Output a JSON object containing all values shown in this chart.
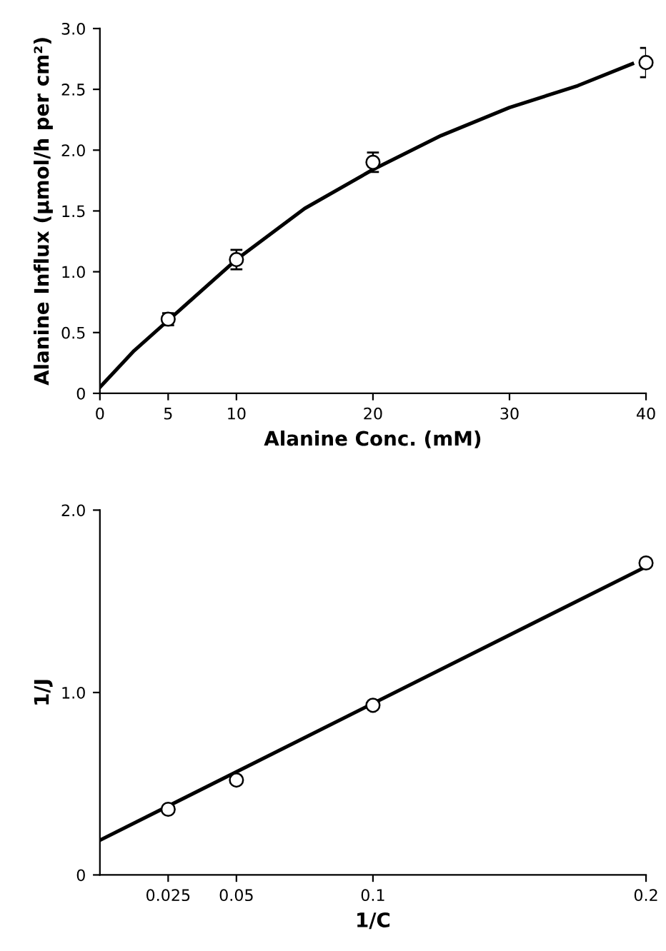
{
  "chart_data": [
    {
      "type": "scatter",
      "xlabel": "Alanine Conc. (mM)",
      "ylabel": "Alanine Influx (μmol/h per cm²)",
      "xlim": [
        0,
        40
      ],
      "ylim": [
        0,
        3.0
      ],
      "xticks": [
        0,
        5,
        10,
        20,
        30,
        40
      ],
      "yticks": [
        0,
        {
          "value": 0.5,
          "label": "0.5"
        },
        {
          "value": 1.0,
          "label": "1.0"
        },
        {
          "value": 1.5,
          "label": "1.5"
        },
        {
          "value": 2.0,
          "label": "2.0"
        },
        {
          "value": 2.5,
          "label": "2.5"
        },
        {
          "value": 3.0,
          "label": "3.0"
        }
      ],
      "grid": false,
      "legend": false,
      "series": [
        {
          "marker": "circle",
          "color": "#000000",
          "x": [
            5,
            10,
            20,
            40
          ],
          "values": [
            0.61,
            1.1,
            1.9,
            2.72
          ],
          "errors": [
            0.05,
            0.08,
            0.08,
            0.12
          ]
        },
        {
          "type": "line",
          "marker": "none",
          "line_style": "solid",
          "color": "#000000",
          "x": [
            0,
            2.5,
            5,
            10,
            15,
            20,
            25,
            30,
            35,
            39
          ],
          "values": [
            0.05,
            0.35,
            0.6,
            1.1,
            1.52,
            1.84,
            2.12,
            2.35,
            2.53,
            2.71
          ]
        }
      ]
    },
    {
      "type": "scatter",
      "xlabel": "1/C",
      "ylabel": "1/J",
      "xlim": [
        0,
        0.2
      ],
      "ylim": [
        0,
        2.0
      ],
      "xticks": [
        0.025,
        0.05,
        0.1,
        0.2
      ],
      "yticks": [
        0,
        {
          "value": 1.0,
          "label": "1.0"
        },
        {
          "value": 2.0,
          "label": "2.0"
        }
      ],
      "grid": false,
      "legend": false,
      "series": [
        {
          "marker": "circle",
          "color": "#000000",
          "x": [
            0.025,
            0.05,
            0.1,
            0.2
          ],
          "values": [
            0.36,
            0.52,
            0.93,
            1.71
          ]
        },
        {
          "type": "line",
          "marker": "none",
          "line_style": "solid",
          "color": "#000000",
          "x": [
            0,
            0.2
          ],
          "values": [
            0.19,
            1.69
          ]
        }
      ]
    }
  ]
}
